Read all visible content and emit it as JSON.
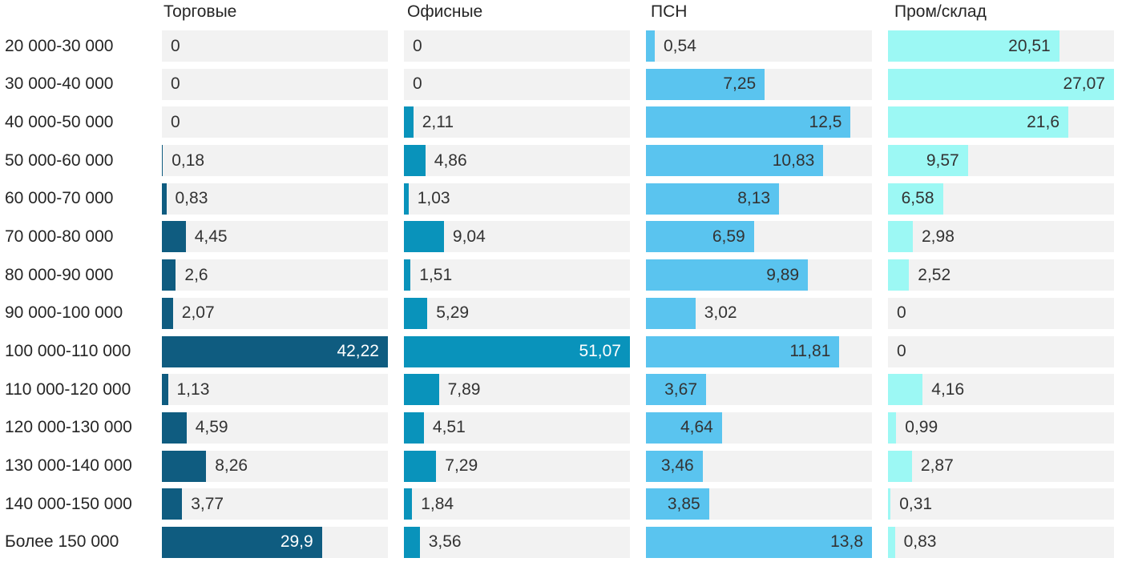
{
  "chart_data": {
    "type": "bar",
    "orientation": "horizontal",
    "title": "",
    "xlabel": "",
    "ylabel": "",
    "grid": false,
    "legend_position": "column headers on top",
    "scale_note": "each column scaled independently; series max fills full track width",
    "track_color": "#f2f2f2",
    "category_text_color": "#262626",
    "value_outside_color": "#333333",
    "categories": [
      "20 000-30 000",
      "30 000-40 000",
      "40 000-50 000",
      "50 000-60 000",
      "60 000-70 000",
      "70 000-80 000",
      "80 000-90 000",
      "90 000-100 000",
      "100 000-110 000",
      "110 000-120 000",
      "120 000-130 000",
      "130 000-140 000",
      "140 000-150 000",
      "Более 150 000"
    ],
    "series": [
      {
        "name": "Торговые",
        "color": "#0f5c80",
        "label_color_inside": "#ffffff",
        "values": [
          0,
          0,
          0,
          0.18,
          0.83,
          4.45,
          2.6,
          2.07,
          42.22,
          1.13,
          4.59,
          8.26,
          3.77,
          29.9
        ],
        "labels": [
          "0",
          "0",
          "0",
          "0,18",
          "0,83",
          "4,45",
          "2,6",
          "2,07",
          "42,22",
          "1,13",
          "4,59",
          "8,26",
          "3,77",
          "29,9"
        ]
      },
      {
        "name": "Офисные",
        "color": "#0993bb",
        "label_color_inside": "#ffffff",
        "values": [
          0,
          0,
          2.11,
          4.86,
          1.03,
          9.04,
          1.51,
          5.29,
          51.07,
          7.89,
          4.51,
          7.29,
          1.84,
          3.56
        ],
        "labels": [
          "0",
          "0",
          "2,11",
          "4,86",
          "1,03",
          "9,04",
          "1,51",
          "5,29",
          "51,07",
          "7,89",
          "4,51",
          "7,29",
          "1,84",
          "3,56"
        ]
      },
      {
        "name": "ПСН",
        "color": "#5ac4ef",
        "label_color_inside": "#333333",
        "values": [
          0.54,
          7.25,
          12.5,
          10.83,
          8.13,
          6.59,
          9.89,
          3.02,
          11.81,
          3.67,
          4.64,
          3.46,
          3.85,
          13.8
        ],
        "labels": [
          "0,54",
          "7,25",
          "12,5",
          "10,83",
          "8,13",
          "6,59",
          "9,89",
          "3,02",
          "11,81",
          "3,67",
          "4,64",
          "3,46",
          "3,85",
          "13,8"
        ]
      },
      {
        "name": "Пром/склад",
        "color": "#9cf8f4",
        "label_color_inside": "#333333",
        "values": [
          20.51,
          27.07,
          21.6,
          9.57,
          6.58,
          2.98,
          2.52,
          0,
          0,
          4.16,
          0.99,
          2.87,
          0.31,
          0.83
        ],
        "labels": [
          "20,51",
          "27,07",
          "21,6",
          "9,57",
          "6,58",
          "2,98",
          "2,52",
          "0",
          "0",
          "4,16",
          "0,99",
          "2,87",
          "0,31",
          "0,83"
        ]
      }
    ]
  }
}
